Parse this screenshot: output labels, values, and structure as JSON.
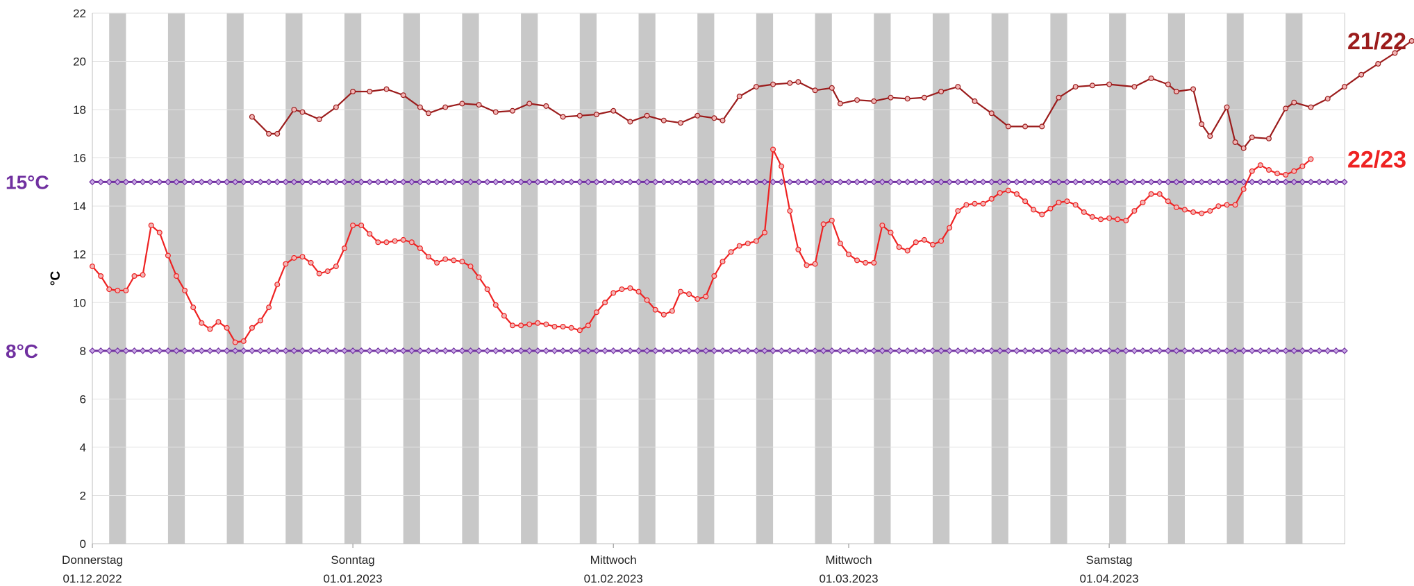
{
  "chart_data": {
    "type": "line",
    "title": "",
    "xlabel": "",
    "ylabel": "°C",
    "ylim": [
      0,
      22
    ],
    "yticks": [
      0,
      2,
      4,
      6,
      8,
      10,
      12,
      14,
      16,
      18,
      20,
      22
    ],
    "xlim": [
      "2022-12-01",
      "2023-05-01"
    ],
    "xtick_labels": [
      {
        "date": "2022-12-01",
        "weekday": "Donnerstag",
        "label": "01.12.2022"
      },
      {
        "date": "2023-01-01",
        "weekday": "Sonntag",
        "label": "01.01.2023"
      },
      {
        "date": "2023-02-01",
        "weekday": "Mittwoch",
        "label": "01.02.2023"
      },
      {
        "date": "2023-03-01",
        "weekday": "Mittwoch",
        "label": "01.03.2023"
      },
      {
        "date": "2023-04-01",
        "weekday": "Samstag",
        "label": "01.04.2023"
      }
    ],
    "grid": true,
    "weekend_bands": "Saturday–Sunday shaded gray",
    "reference_lines": [
      {
        "value": 15,
        "label": "15°C",
        "color": "#7030a0"
      },
      {
        "value": 8,
        "label": "8°C",
        "color": "#7030a0"
      }
    ],
    "series": [
      {
        "name": "21/22",
        "color": "#9b1b1b",
        "points": [
          [
            "2022-12-20",
            17.7
          ],
          [
            "2022-12-22",
            17.0
          ],
          [
            "2022-12-23",
            17.0
          ],
          [
            "2022-12-25",
            18.0
          ],
          [
            "2022-12-26",
            17.9
          ],
          [
            "2022-12-28",
            17.6
          ],
          [
            "2022-12-30",
            18.1
          ],
          [
            "2023-01-01",
            18.75
          ],
          [
            "2023-01-03",
            18.75
          ],
          [
            "2023-01-05",
            18.85
          ],
          [
            "2023-01-07",
            18.6
          ],
          [
            "2023-01-09",
            18.1
          ],
          [
            "2023-01-10",
            17.85
          ],
          [
            "2023-01-12",
            18.1
          ],
          [
            "2023-01-14",
            18.25
          ],
          [
            "2023-01-16",
            18.2
          ],
          [
            "2023-01-18",
            17.9
          ],
          [
            "2023-01-20",
            17.95
          ],
          [
            "2023-01-22",
            18.25
          ],
          [
            "2023-01-24",
            18.15
          ],
          [
            "2023-01-26",
            17.7
          ],
          [
            "2023-01-28",
            17.75
          ],
          [
            "2023-01-30",
            17.8
          ],
          [
            "2023-02-01",
            17.95
          ],
          [
            "2023-02-03",
            17.5
          ],
          [
            "2023-02-05",
            17.75
          ],
          [
            "2023-02-07",
            17.55
          ],
          [
            "2023-02-09",
            17.45
          ],
          [
            "2023-02-11",
            17.75
          ],
          [
            "2023-02-13",
            17.65
          ],
          [
            "2023-02-14",
            17.55
          ],
          [
            "2023-02-16",
            18.55
          ],
          [
            "2023-02-18",
            18.95
          ],
          [
            "2023-02-20",
            19.05
          ],
          [
            "2023-02-22",
            19.1
          ],
          [
            "2023-02-23",
            19.15
          ],
          [
            "2023-02-25",
            18.8
          ],
          [
            "2023-02-27",
            18.9
          ],
          [
            "2023-02-28",
            18.25
          ],
          [
            "2023-03-02",
            18.4
          ],
          [
            "2023-03-04",
            18.35
          ],
          [
            "2023-03-06",
            18.5
          ],
          [
            "2023-03-08",
            18.45
          ],
          [
            "2023-03-10",
            18.5
          ],
          [
            "2023-03-12",
            18.75
          ],
          [
            "2023-03-14",
            18.95
          ],
          [
            "2023-03-16",
            18.35
          ],
          [
            "2023-03-18",
            17.85
          ],
          [
            "2023-03-20",
            17.3
          ],
          [
            "2023-03-22",
            17.3
          ],
          [
            "2023-03-24",
            17.3
          ],
          [
            "2023-03-26",
            18.5
          ],
          [
            "2023-03-28",
            18.95
          ],
          [
            "2023-03-30",
            19.0
          ],
          [
            "2023-04-01",
            19.05
          ],
          [
            "2023-04-04",
            18.95
          ],
          [
            "2023-04-06",
            19.3
          ],
          [
            "2023-04-08",
            19.05
          ],
          [
            "2023-04-09",
            18.75
          ],
          [
            "2023-04-11",
            18.85
          ],
          [
            "2023-04-12",
            17.4
          ],
          [
            "2023-04-13",
            16.9
          ],
          [
            "2023-04-15",
            18.1
          ],
          [
            "2023-04-16",
            16.65
          ],
          [
            "2023-04-17",
            16.4
          ],
          [
            "2023-04-18",
            16.85
          ],
          [
            "2023-04-20",
            16.8
          ],
          [
            "2023-04-22",
            18.05
          ],
          [
            "2023-04-23",
            18.3
          ],
          [
            "2023-04-25",
            18.1
          ],
          [
            "2023-04-27",
            18.45
          ],
          [
            "2023-04-29",
            18.95
          ],
          [
            "2023-05-01",
            19.45
          ],
          [
            "2023-05-03",
            19.9
          ],
          [
            "2023-05-05",
            20.35
          ],
          [
            "2023-05-07",
            20.85
          ]
        ]
      },
      {
        "name": "22/23",
        "color": "#ee2222",
        "points": [
          [
            "2022-12-01",
            11.5
          ],
          [
            "2022-12-02",
            11.1
          ],
          [
            "2022-12-03",
            10.55
          ],
          [
            "2022-12-04",
            10.5
          ],
          [
            "2022-12-05",
            10.5
          ],
          [
            "2022-12-06",
            11.1
          ],
          [
            "2022-12-07",
            11.15
          ],
          [
            "2022-12-08",
            13.2
          ],
          [
            "2022-12-09",
            12.9
          ],
          [
            "2022-12-10",
            11.95
          ],
          [
            "2022-12-11",
            11.1
          ],
          [
            "2022-12-12",
            10.5
          ],
          [
            "2022-12-13",
            9.8
          ],
          [
            "2022-12-14",
            9.15
          ],
          [
            "2022-12-15",
            8.9
          ],
          [
            "2022-12-16",
            9.2
          ],
          [
            "2022-12-17",
            8.95
          ],
          [
            "2022-12-18",
            8.35
          ],
          [
            "2022-12-19",
            8.4
          ],
          [
            "2022-12-20",
            8.95
          ],
          [
            "2022-12-21",
            9.25
          ],
          [
            "2022-12-22",
            9.8
          ],
          [
            "2022-12-23",
            10.75
          ],
          [
            "2022-12-24",
            11.6
          ],
          [
            "2022-12-25",
            11.85
          ],
          [
            "2022-12-26",
            11.9
          ],
          [
            "2022-12-27",
            11.65
          ],
          [
            "2022-12-28",
            11.2
          ],
          [
            "2022-12-29",
            11.3
          ],
          [
            "2022-12-30",
            11.5
          ],
          [
            "2022-12-31",
            12.25
          ],
          [
            "2023-01-01",
            13.2
          ],
          [
            "2023-01-02",
            13.2
          ],
          [
            "2023-01-03",
            12.85
          ],
          [
            "2023-01-04",
            12.5
          ],
          [
            "2023-01-05",
            12.5
          ],
          [
            "2023-01-06",
            12.55
          ],
          [
            "2023-01-07",
            12.6
          ],
          [
            "2023-01-08",
            12.5
          ],
          [
            "2023-01-09",
            12.25
          ],
          [
            "2023-01-10",
            11.9
          ],
          [
            "2023-01-11",
            11.65
          ],
          [
            "2023-01-12",
            11.8
          ],
          [
            "2023-01-13",
            11.75
          ],
          [
            "2023-01-14",
            11.7
          ],
          [
            "2023-01-15",
            11.5
          ],
          [
            "2023-01-16",
            11.05
          ],
          [
            "2023-01-17",
            10.55
          ],
          [
            "2023-01-18",
            9.9
          ],
          [
            "2023-01-19",
            9.45
          ],
          [
            "2023-01-20",
            9.05
          ],
          [
            "2023-01-21",
            9.05
          ],
          [
            "2023-01-22",
            9.1
          ],
          [
            "2023-01-23",
            9.15
          ],
          [
            "2023-01-24",
            9.1
          ],
          [
            "2023-01-25",
            9.0
          ],
          [
            "2023-01-26",
            9.0
          ],
          [
            "2023-01-27",
            8.95
          ],
          [
            "2023-01-28",
            8.85
          ],
          [
            "2023-01-29",
            9.05
          ],
          [
            "2023-01-30",
            9.6
          ],
          [
            "2023-01-31",
            10.0
          ],
          [
            "2023-02-01",
            10.4
          ],
          [
            "2023-02-02",
            10.55
          ],
          [
            "2023-02-03",
            10.6
          ],
          [
            "2023-02-04",
            10.45
          ],
          [
            "2023-02-05",
            10.1
          ],
          [
            "2023-02-06",
            9.7
          ],
          [
            "2023-02-07",
            9.5
          ],
          [
            "2023-02-08",
            9.65
          ],
          [
            "2023-02-09",
            10.45
          ],
          [
            "2023-02-10",
            10.35
          ],
          [
            "2023-02-11",
            10.15
          ],
          [
            "2023-02-12",
            10.25
          ],
          [
            "2023-02-13",
            11.1
          ],
          [
            "2023-02-14",
            11.7
          ],
          [
            "2023-02-15",
            12.1
          ],
          [
            "2023-02-16",
            12.35
          ],
          [
            "2023-02-17",
            12.45
          ],
          [
            "2023-02-18",
            12.55
          ],
          [
            "2023-02-19",
            12.9
          ],
          [
            "2023-02-20",
            16.35
          ],
          [
            "2023-02-21",
            15.65
          ],
          [
            "2023-02-22",
            13.8
          ],
          [
            "2023-02-23",
            12.2
          ],
          [
            "2023-02-24",
            11.55
          ],
          [
            "2023-02-25",
            11.6
          ],
          [
            "2023-02-26",
            13.25
          ],
          [
            "2023-02-27",
            13.4
          ],
          [
            "2023-02-28",
            12.45
          ],
          [
            "2023-03-01",
            12.0
          ],
          [
            "2023-03-02",
            11.75
          ],
          [
            "2023-03-03",
            11.65
          ],
          [
            "2023-03-04",
            11.65
          ],
          [
            "2023-03-05",
            13.2
          ],
          [
            "2023-03-06",
            12.9
          ],
          [
            "2023-03-07",
            12.3
          ],
          [
            "2023-03-08",
            12.15
          ],
          [
            "2023-03-09",
            12.5
          ],
          [
            "2023-03-10",
            12.6
          ],
          [
            "2023-03-11",
            12.4
          ],
          [
            "2023-03-12",
            12.55
          ],
          [
            "2023-03-13",
            13.1
          ],
          [
            "2023-03-14",
            13.8
          ],
          [
            "2023-03-15",
            14.05
          ],
          [
            "2023-03-16",
            14.1
          ],
          [
            "2023-03-17",
            14.1
          ],
          [
            "2023-03-18",
            14.3
          ],
          [
            "2023-03-19",
            14.55
          ],
          [
            "2023-03-20",
            14.65
          ],
          [
            "2023-03-21",
            14.5
          ],
          [
            "2023-03-22",
            14.2
          ],
          [
            "2023-03-23",
            13.85
          ],
          [
            "2023-03-24",
            13.65
          ],
          [
            "2023-03-25",
            13.9
          ],
          [
            "2023-03-26",
            14.15
          ],
          [
            "2023-03-27",
            14.2
          ],
          [
            "2023-03-28",
            14.05
          ],
          [
            "2023-03-29",
            13.75
          ],
          [
            "2023-03-30",
            13.55
          ],
          [
            "2023-03-31",
            13.45
          ],
          [
            "2023-04-01",
            13.5
          ],
          [
            "2023-04-02",
            13.45
          ],
          [
            "2023-04-03",
            13.4
          ],
          [
            "2023-04-04",
            13.8
          ],
          [
            "2023-04-05",
            14.15
          ],
          [
            "2023-04-06",
            14.5
          ],
          [
            "2023-04-07",
            14.5
          ],
          [
            "2023-04-08",
            14.2
          ],
          [
            "2023-04-09",
            13.95
          ],
          [
            "2023-04-10",
            13.85
          ],
          [
            "2023-04-11",
            13.75
          ],
          [
            "2023-04-12",
            13.7
          ],
          [
            "2023-04-13",
            13.8
          ],
          [
            "2023-04-14",
            14.0
          ],
          [
            "2023-04-15",
            14.05
          ],
          [
            "2023-04-16",
            14.05
          ],
          [
            "2023-04-17",
            14.7
          ],
          [
            "2023-04-18",
            15.45
          ],
          [
            "2023-04-19",
            15.7
          ],
          [
            "2023-04-20",
            15.5
          ],
          [
            "2023-04-21",
            15.35
          ],
          [
            "2023-04-22",
            15.3
          ],
          [
            "2023-04-23",
            15.45
          ],
          [
            "2023-04-24",
            15.65
          ],
          [
            "2023-04-25",
            15.95
          ]
        ]
      }
    ]
  }
}
